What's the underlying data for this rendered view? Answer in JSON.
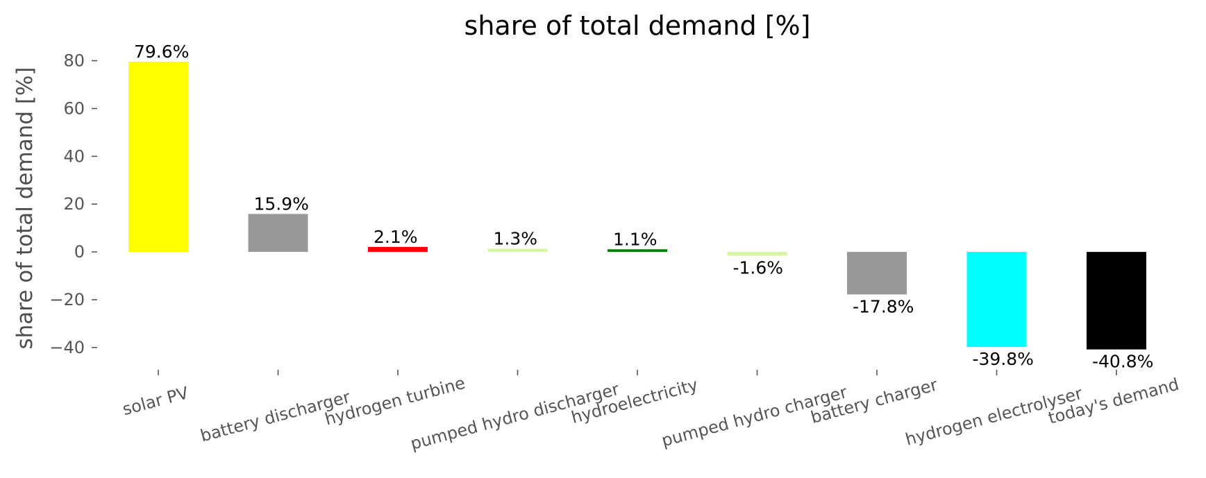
{
  "chart_data": {
    "type": "bar",
    "title": "share of total demand [%]",
    "ylabel": "share of total demand [%]",
    "xlabel": "",
    "ylim": [
      -47,
      88
    ],
    "yticks": [
      80,
      60,
      40,
      20,
      0,
      -20,
      -40
    ],
    "ytick_labels": [
      "80",
      "60",
      "40",
      "20",
      "0",
      "−20",
      "−40"
    ],
    "grid": false,
    "categories": [
      "solar PV",
      "battery discharger",
      "hydrogen turbine",
      "pumped hydro discharger",
      "hydroelectricity",
      "pumped hydro charger",
      "battery charger",
      "hydrogen electrolyser",
      "today's demand"
    ],
    "values": [
      79.6,
      15.9,
      2.1,
      1.3,
      1.1,
      -1.6,
      -17.8,
      -39.8,
      -40.8
    ],
    "data_labels": [
      "79.6%",
      "15.9%",
      "2.1%",
      "1.3%",
      "1.1%",
      "-1.6%",
      "-17.8%",
      "-39.8%",
      "-40.8%"
    ],
    "colors": [
      "#ffff00",
      "#999999",
      "#ff0000",
      "#d8f5a2",
      "#008000",
      "#d8f5a2",
      "#999999",
      "#00ffff",
      "#000000"
    ]
  }
}
